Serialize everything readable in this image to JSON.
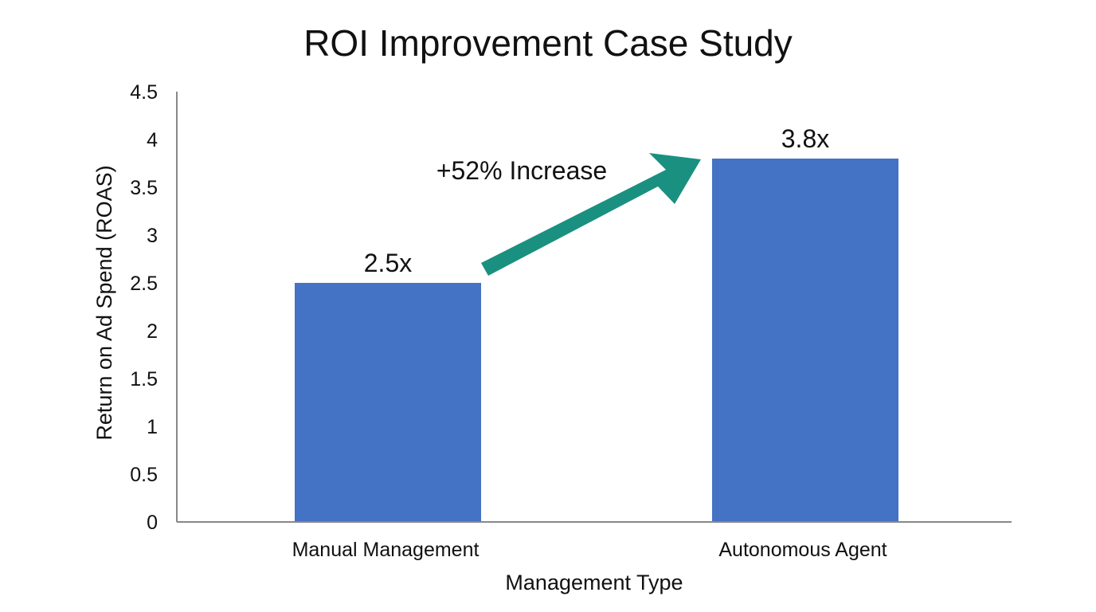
{
  "chart_data": {
    "type": "bar",
    "title": "ROI Improvement Case Study",
    "xlabel": "Management Type",
    "ylabel": "Return on Ad Spend (ROAS)",
    "categories": [
      "Manual Management",
      "Autonomous Agent"
    ],
    "values": [
      2.5,
      3.8
    ],
    "data_labels": [
      "2.5x",
      "3.8x"
    ],
    "ylim": [
      0,
      4.5
    ],
    "yticks": [
      "0",
      "0.5",
      "1",
      "1.5",
      "2",
      "2.5",
      "3",
      "3.5",
      "4",
      "4.5"
    ],
    "grid": false,
    "legend": "none",
    "annotation": {
      "text": "+52% Increase",
      "type": "arrow",
      "from": "Manual Management",
      "to": "Autonomous Agent"
    },
    "colors": {
      "bar": "#4472C4",
      "arrow": "#1A9080",
      "axis": "#888888"
    }
  }
}
